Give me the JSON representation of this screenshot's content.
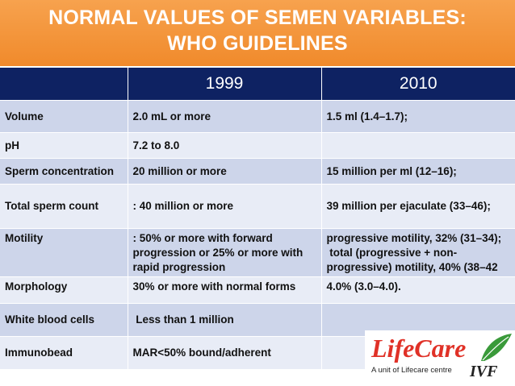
{
  "header": {
    "line1": "NORMAL VALUES OF SEMEN VARIABLES:",
    "line2": "WHO GUIDELINES"
  },
  "table": {
    "columns": [
      "",
      "1999",
      "2010"
    ],
    "rows": [
      {
        "label": "Volume",
        "v1999": [
          "2.0 mL or more"
        ],
        "v2010": [
          "1.5 ml (1.4–1.7);"
        ]
      },
      {
        "label": "pH",
        "v1999": [
          "7.2 to 8.0"
        ],
        "v2010": []
      },
      {
        "label": "Sperm concentration",
        "v1999": [
          "20 million or more"
        ],
        "v2010": [
          "15 million per ml (12–16);"
        ]
      },
      {
        "label": "Total sperm count",
        "v1999": [
          ": 40 million or more"
        ],
        "v2010": [
          "39 million per ejaculate (33–46);"
        ]
      },
      {
        "label": "Motility",
        "v1999": [
          ": 50% or more with forward",
          "progression or 25% or more with",
          "rapid progression"
        ],
        "v2010": [
          "progressive motility, 32% (31–34);",
          " total (progressive + non-",
          "progressive) motility, 40% (38–42"
        ]
      },
      {
        "label": "Morphology",
        "v1999": [
          "30% or more with normal forms"
        ],
        "v2010": [
          "4.0% (3.0–4.0)."
        ]
      },
      {
        "label": "White blood cells",
        "v1999": [
          " Less than 1 million"
        ],
        "v2010": []
      },
      {
        "label": "Immunobead",
        "v1999": [
          "MAR<50% bound/adherent"
        ],
        "v2010": []
      }
    ]
  },
  "logo": {
    "name": "LifeCare",
    "subtitle": "A unit of Lifecare centre",
    "tag": "IVF",
    "colors": {
      "name": "#e03127",
      "leaf": "#3a9a3a"
    }
  },
  "colors": {
    "header_bg": "#f08a2b",
    "table_header_bg": "#0e2262",
    "row_odd": "#cdd5ea",
    "row_even": "#e8ecf6"
  }
}
